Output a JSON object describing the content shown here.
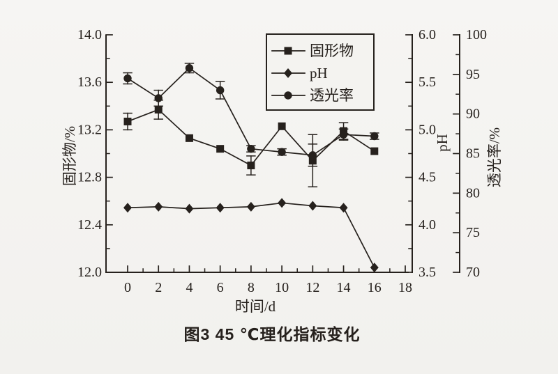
{
  "figure": {
    "caption": "图3  45 ℃理化指标变化",
    "ink": "#26211d",
    "paper": "#f4f3f0"
  },
  "chart_data": {
    "type": "line",
    "x": [
      0,
      2,
      4,
      6,
      8,
      10,
      12,
      14,
      16
    ],
    "axes": {
      "x": {
        "title": "时间/d",
        "min": 0,
        "max": 18,
        "major_ticks": [
          0,
          2,
          4,
          6,
          8,
          10,
          12,
          14,
          16,
          18
        ],
        "tick_labels": [
          "0",
          "2",
          "4",
          "6",
          "8",
          "10",
          "12",
          "14",
          "16",
          "18"
        ],
        "minor_step": 1
      },
      "left": {
        "title": "固形物/%",
        "min": 12.0,
        "max": 14.0,
        "major_ticks": [
          12.0,
          12.4,
          12.8,
          13.2,
          13.6,
          14.0
        ],
        "tick_labels": [
          "12.0",
          "12.4",
          "12.8",
          "13.2",
          "13.6",
          "14.0"
        ],
        "minor_step": 0.2
      },
      "ph": {
        "title": "pH",
        "min": 3.5,
        "max": 6.0,
        "major_ticks": [
          3.5,
          4.0,
          4.5,
          5.0,
          5.5,
          6.0
        ],
        "tick_labels": [
          "3.5",
          "4.0",
          "4.5",
          "5.0",
          "5.5",
          "6.0"
        ],
        "minor_step": 0.25
      },
      "trans": {
        "title": "透光率/%",
        "min": 70,
        "max": 100,
        "major_ticks": [
          70,
          75,
          80,
          85,
          90,
          95,
          100
        ],
        "tick_labels": [
          "70",
          "75",
          "80",
          "85",
          "90",
          "95",
          "100"
        ],
        "minor_step": 2.5
      }
    },
    "series": [
      {
        "id": "solids",
        "name": "固形物",
        "axis": "left",
        "marker": "square",
        "values": [
          13.27,
          13.37,
          13.13,
          13.04,
          12.9,
          13.23,
          12.94,
          13.19,
          13.02
        ],
        "errors": [
          0.07,
          0.08,
          0,
          0,
          0.08,
          0,
          0.22,
          0.07,
          0
        ]
      },
      {
        "id": "ph",
        "name": "pH",
        "axis": "ph",
        "marker": "diamond",
        "values": [
          4.18,
          4.19,
          4.17,
          4.18,
          4.19,
          4.23,
          4.2,
          4.18,
          3.55
        ],
        "errors": [
          0,
          0,
          0,
          0,
          0,
          0,
          0,
          0,
          0
        ]
      },
      {
        "id": "transmittance",
        "name": "透光率",
        "axis": "trans",
        "marker": "circle",
        "values": [
          94.5,
          92.0,
          95.8,
          93.0,
          85.6,
          85.2,
          84.8,
          87.4,
          87.2
        ],
        "errors": [
          0.7,
          1.0,
          0.6,
          1.1,
          0.4,
          0.4,
          1.4,
          0.7,
          0.4
        ]
      }
    ],
    "legend": {
      "position": "top-right",
      "entries": [
        "固形物",
        "pH",
        "透光率"
      ]
    },
    "grid": false
  }
}
